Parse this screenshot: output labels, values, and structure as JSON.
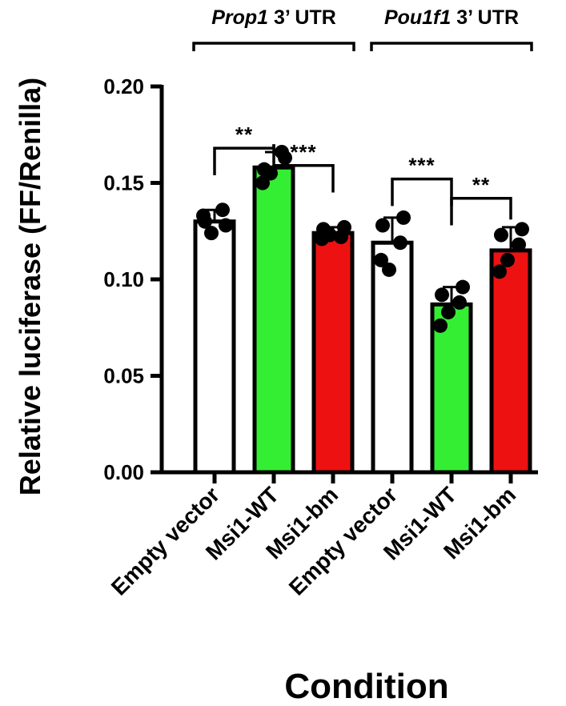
{
  "chart_data": {
    "type": "bar",
    "categories": [
      "Empty vector",
      "Msi1-WT",
      "Msi1-bm",
      "Empty vector",
      "Msi1-WT",
      "Msi1-bm"
    ],
    "values": [
      0.13,
      0.158,
      0.124,
      0.119,
      0.087,
      0.115
    ],
    "error": [
      0.006,
      0.008,
      0.003,
      0.013,
      0.009,
      0.012
    ],
    "points": [
      [
        0.133,
        0.128,
        0.124,
        0.136,
        0.13
      ],
      [
        0.15,
        0.163,
        0.155,
        0.166,
        0.157
      ],
      [
        0.121,
        0.127,
        0.123,
        0.122,
        0.126
      ],
      [
        0.11,
        0.132,
        0.105,
        0.119,
        0.128
      ],
      [
        0.076,
        0.096,
        0.083,
        0.088,
        0.092
      ],
      [
        0.104,
        0.126,
        0.11,
        0.118,
        0.123
      ]
    ],
    "colors": [
      "#ffffff",
      "#33ee33",
      "#ee1111",
      "#ffffff",
      "#33ee33",
      "#ee1111"
    ],
    "ylabel": "Relative luciferase (FF/Renilla)",
    "xlabel": "Condition",
    "ylim": [
      0,
      0.2
    ],
    "yticks": [
      "0.00",
      "0.05",
      "0.10",
      "0.15",
      "0.20"
    ],
    "groups": [
      {
        "italic": "Prop1",
        "suffix": " 3’ UTR",
        "from": 0,
        "to": 2
      },
      {
        "italic": "Pou1f1",
        "suffix": " 3’ UTR",
        "from": 3,
        "to": 5
      }
    ],
    "significance": [
      {
        "from": 0,
        "to": 1,
        "label": "**",
        "level": 0.168
      },
      {
        "from": 1,
        "to": 2,
        "label": "***",
        "level": 0.159
      },
      {
        "from": 3,
        "to": 4,
        "label": "***",
        "level": 0.152
      },
      {
        "from": 4,
        "to": 5,
        "label": "**",
        "level": 0.142
      }
    ],
    "grid": false,
    "legend": "none"
  }
}
